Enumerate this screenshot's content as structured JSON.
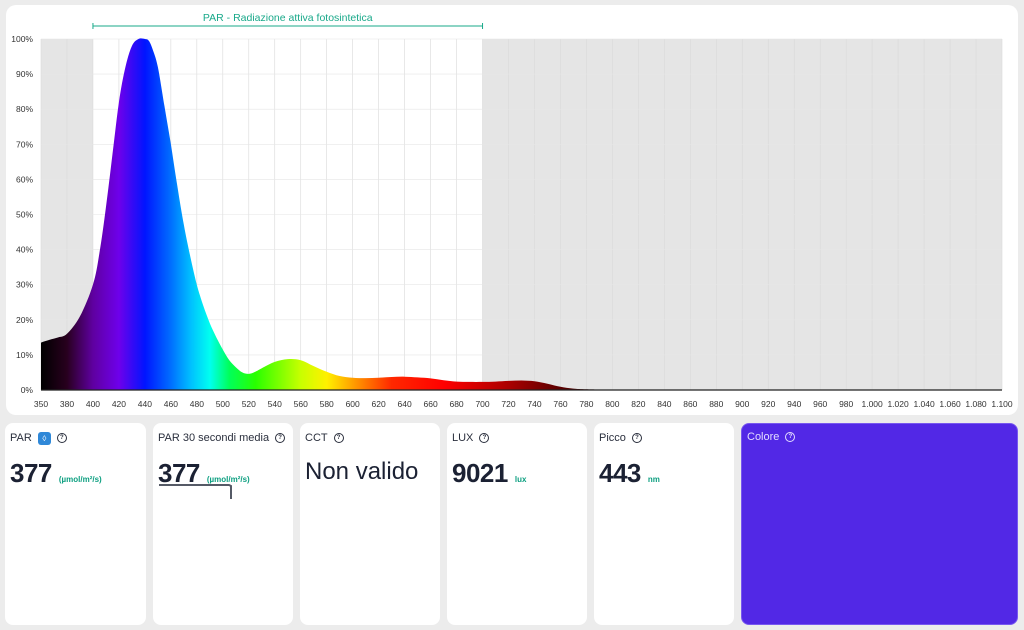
{
  "chart_data": {
    "type": "area",
    "title": "",
    "xlabel": "",
    "ylabel": "",
    "xlim": [
      350,
      1100
    ],
    "ylim": [
      0,
      100
    ],
    "x_ticks": [
      350,
      380,
      400,
      420,
      440,
      460,
      480,
      500,
      520,
      540,
      560,
      580,
      600,
      620,
      640,
      660,
      680,
      700,
      720,
      740,
      760,
      780,
      800,
      820,
      840,
      860,
      880,
      900,
      920,
      940,
      960,
      980,
      1000,
      1020,
      1040,
      1060,
      1080,
      1100
    ],
    "x_tick_labels": [
      "350",
      "380",
      "400",
      "420",
      "440",
      "460",
      "480",
      "500",
      "520",
      "540",
      "560",
      "580",
      "600",
      "620",
      "640",
      "660",
      "680",
      "700",
      "720",
      "740",
      "760",
      "780",
      "800",
      "820",
      "840",
      "860",
      "880",
      "900",
      "920",
      "940",
      "960",
      "980",
      "1.000",
      "1.020",
      "1.040",
      "1.060",
      "1.080",
      "1.100"
    ],
    "y_ticks": [
      0,
      10,
      20,
      30,
      40,
      50,
      60,
      70,
      80,
      90,
      100
    ],
    "y_tick_labels": [
      "0%",
      "10%",
      "20%",
      "30%",
      "40%",
      "50%",
      "60%",
      "70%",
      "80%",
      "90%",
      "100%"
    ],
    "grid": true,
    "par_band": {
      "label": "PAR - Radiazione attiva fotosintetica",
      "from": 400,
      "to": 700
    },
    "series": [
      {
        "x": [
          350,
          360,
          370,
          380,
          390,
          400,
          405,
          410,
          415,
          420,
          425,
          430,
          435,
          440,
          443,
          446,
          450,
          455,
          460,
          465,
          470,
          475,
          480,
          485,
          490,
          495,
          500,
          505,
          510,
          515,
          520,
          525,
          530,
          540,
          550,
          560,
          570,
          580,
          590,
          600,
          610,
          620,
          630,
          640,
          650,
          660,
          670,
          680,
          690,
          700,
          710,
          720,
          730,
          740,
          750,
          760,
          770,
          780,
          800,
          850,
          900,
          1000,
          1100
        ],
        "values": [
          13.5,
          14.3,
          15,
          16,
          21,
          30,
          39,
          52,
          67,
          82,
          92,
          98,
          100,
          100,
          99.5,
          97,
          92,
          81,
          70,
          58,
          47,
          38,
          30,
          24,
          19,
          15,
          11.5,
          8.5,
          6.5,
          5,
          4.6,
          5.2,
          6.2,
          8,
          8.8,
          8.5,
          6.8,
          5.2,
          4,
          3.5,
          3.4,
          3.5,
          3.7,
          3.8,
          3.6,
          3.3,
          2.8,
          2.4,
          2.3,
          2.3,
          2.4,
          2.6,
          2.7,
          2.5,
          1.8,
          0.9,
          0.4,
          0.2,
          0.1,
          0.1,
          0.1,
          0,
          0
        ]
      }
    ]
  },
  "tiles": {
    "par": {
      "label": "PAR",
      "value": "377",
      "unit": "(µmol/m²/s)"
    },
    "par30": {
      "label": "PAR 30 secondi media",
      "value": "377",
      "unit": "(µmol/m²/s)"
    },
    "cct": {
      "label": "CCT",
      "value": "Non valido"
    },
    "lux": {
      "label": "LUX",
      "value": "9021",
      "unit": "lux"
    },
    "peak": {
      "label": "Picco",
      "value": "443",
      "unit": "nm"
    },
    "color": {
      "label": "Colore",
      "swatch": "#5228e6"
    }
  },
  "icons": {
    "help": "?",
    "par_badge": "◊"
  }
}
